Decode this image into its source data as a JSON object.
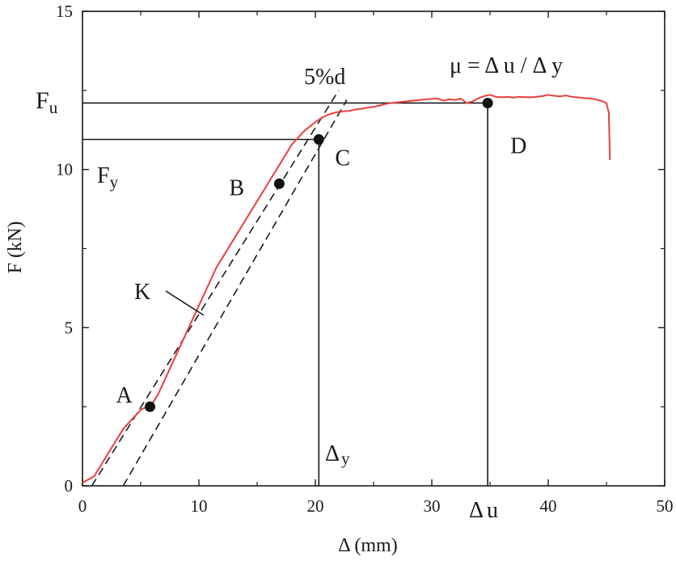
{
  "chart_data": {
    "type": "line",
    "xlabel": "Δ (mm)",
    "ylabel": "F (kN)",
    "xlim": [
      0,
      50
    ],
    "ylim": [
      0,
      15
    ],
    "x_ticks": [
      0,
      10,
      20,
      30,
      40,
      50
    ],
    "y_ticks": [
      0,
      5,
      10,
      15
    ],
    "x_tick_labels": [
      "0",
      "10",
      "20",
      "30",
      "40",
      "50"
    ],
    "y_tick_labels": [
      "0",
      "5",
      "10",
      "15"
    ],
    "grid": false,
    "series": [
      {
        "color": "#e8413a",
        "x": [
          0,
          0.5,
          1,
          1.5,
          2,
          2.5,
          3,
          3.5,
          4,
          4.5,
          5,
          5.5,
          6,
          6.5,
          7,
          7.5,
          8,
          8.5,
          9,
          9.5,
          10,
          10.5,
          11,
          11.5,
          12,
          12.5,
          13,
          13.5,
          14,
          14.5,
          15,
          15.5,
          16,
          16.5,
          17,
          17.5,
          18,
          18.5,
          19,
          19.5,
          20,
          20.5,
          21,
          21.5,
          22,
          22.5,
          23,
          23.5,
          24,
          24.5,
          25,
          25.5,
          26,
          26.5,
          27,
          27.5,
          28,
          28.5,
          29,
          29.5,
          30,
          30.5,
          31,
          31.5,
          32,
          32.5,
          33,
          33.5,
          34,
          34.5,
          35,
          35.5,
          36,
          36.5,
          37,
          37.5,
          38,
          38.5,
          39,
          39.5,
          40,
          40.5,
          41,
          41.5,
          42,
          42.5,
          43,
          43.5,
          44,
          44.5,
          45,
          45.2,
          45.3
        ],
        "y": [
          0.1,
          0.2,
          0.3,
          0.6,
          0.9,
          1.2,
          1.5,
          1.8,
          2.0,
          2.2,
          2.4,
          2.5,
          2.6,
          2.9,
          3.3,
          3.7,
          4.1,
          4.5,
          4.9,
          5.3,
          5.7,
          6.1,
          6.5,
          6.9,
          7.2,
          7.5,
          7.8,
          8.1,
          8.4,
          8.7,
          9.0,
          9.3,
          9.6,
          9.9,
          10.2,
          10.5,
          10.8,
          11.0,
          11.2,
          11.35,
          11.5,
          11.62,
          11.72,
          11.78,
          11.82,
          11.84,
          11.86,
          11.9,
          11.92,
          11.96,
          11.98,
          12.02,
          12.07,
          12.1,
          12.12,
          12.14,
          12.16,
          12.18,
          12.2,
          12.22,
          12.23,
          12.24,
          12.18,
          12.22,
          12.2,
          12.24,
          12.1,
          12.15,
          12.25,
          12.32,
          12.36,
          12.3,
          12.28,
          12.3,
          12.27,
          12.3,
          12.29,
          12.28,
          12.3,
          12.32,
          12.36,
          12.33,
          12.31,
          12.34,
          12.3,
          12.28,
          12.26,
          12.25,
          12.22,
          12.18,
          12.1,
          11.8,
          10.3
        ]
      }
    ],
    "reference_lines": [
      {
        "kind": "tangent",
        "x": [
          0.8,
          22
        ],
        "y": [
          0,
          12.5
        ]
      },
      {
        "kind": "offset-5%d",
        "x": [
          3.5,
          22.7
        ],
        "y": [
          0,
          12.2
        ]
      },
      {
        "kind": "vertical",
        "x": [
          20.3,
          20.3
        ],
        "y": [
          0,
          10.95
        ]
      },
      {
        "kind": "vertical",
        "x": [
          34.8,
          34.8
        ],
        "y": [
          0,
          12.1
        ]
      },
      {
        "kind": "horizontal",
        "x": [
          0,
          20.3
        ],
        "y": [
          10.95,
          10.95
        ]
      },
      {
        "kind": "horizontal",
        "x": [
          0,
          34.8
        ],
        "y": [
          12.1,
          12.1
        ]
      }
    ],
    "points": [
      {
        "label": "A",
        "x": 5.8,
        "y": 2.5
      },
      {
        "label": "B",
        "x": 16.9,
        "y": 9.55
      },
      {
        "label": "C",
        "x": 20.3,
        "y": 10.95
      },
      {
        "label": "D",
        "x": 34.8,
        "y": 12.1
      }
    ],
    "annotations": {
      "formula": "μ = Δ u / Δ y",
      "offset": "5%d",
      "stiffness": "K",
      "fu_main": "F",
      "fu_sub": "u",
      "fy_main": "F",
      "fy_sub": "y",
      "dy_main": "Δ",
      "dy_sub": "y",
      "du_main": "Δ",
      "du_sub": "u"
    }
  }
}
